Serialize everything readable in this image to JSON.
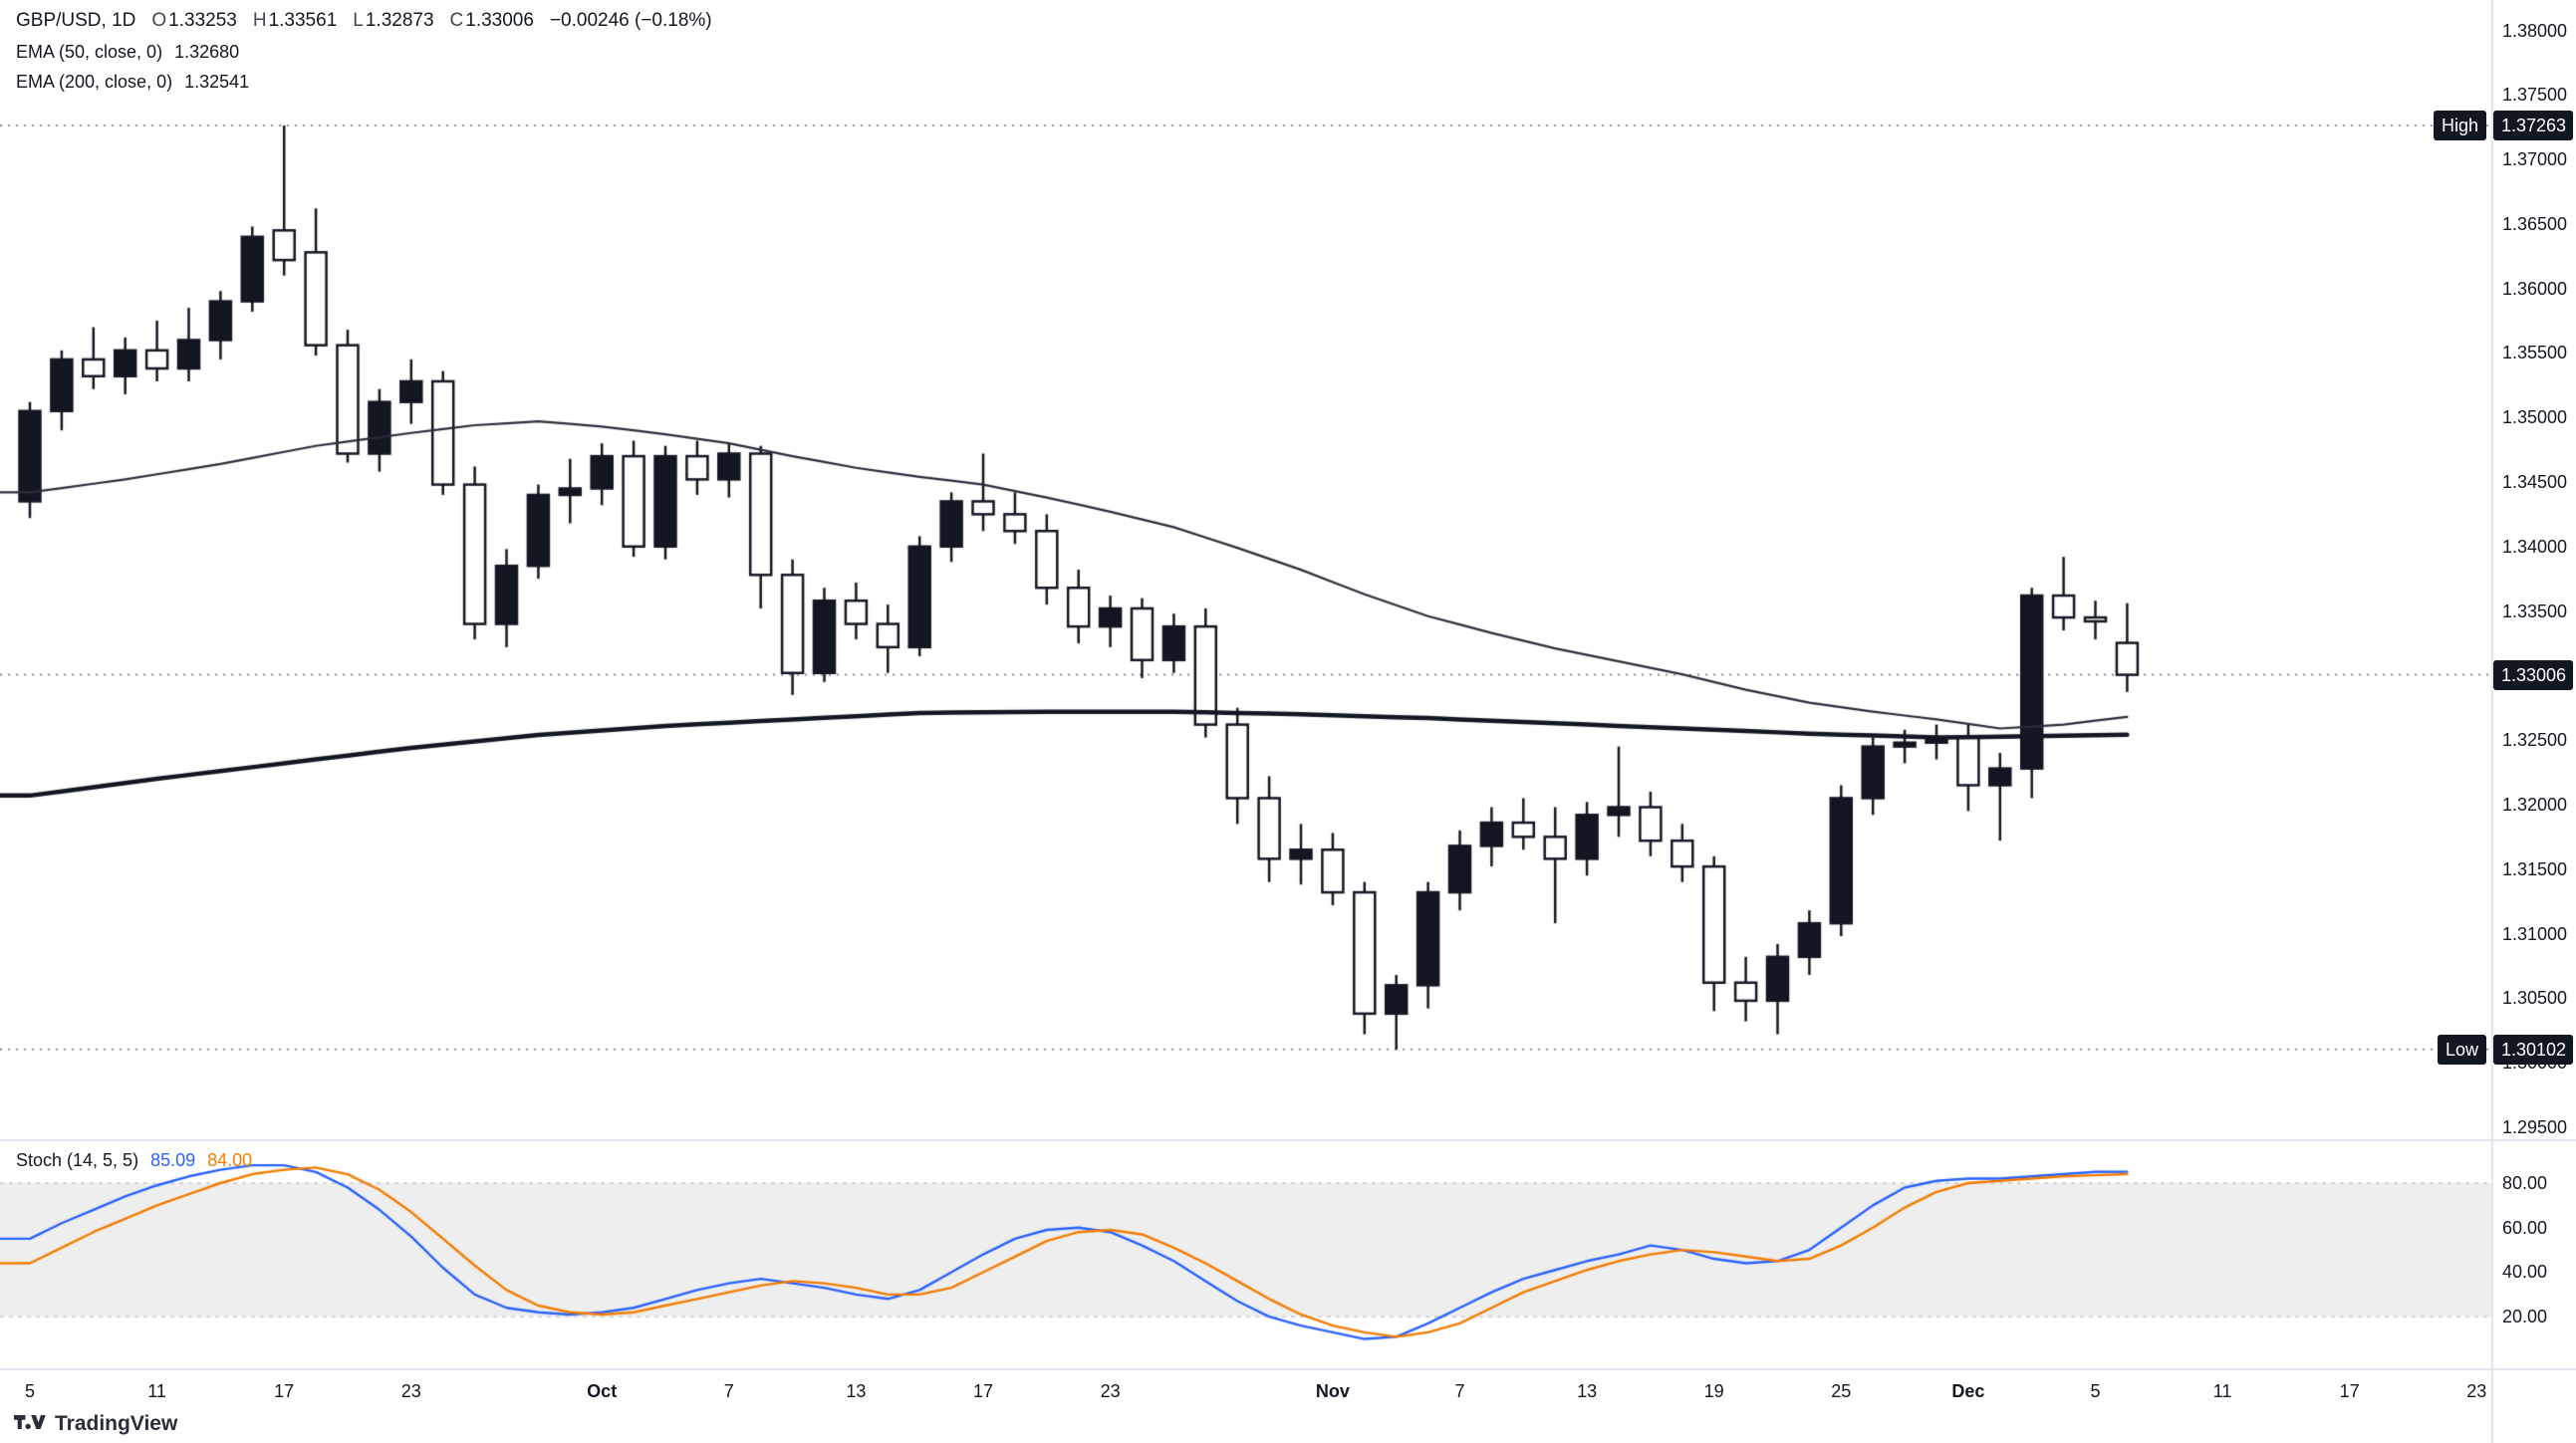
{
  "header": {
    "title": "GBP/USD, 1D",
    "o": {
      "k": "O",
      "v": "1.33253"
    },
    "h": {
      "k": "H",
      "v": "1.33561"
    },
    "l": {
      "k": "L",
      "v": "1.32873"
    },
    "c": {
      "k": "C",
      "v": "1.33006"
    },
    "change": "−0.00246 (−0.18%)",
    "indicators": [
      {
        "label": "EMA (50, close, 0)",
        "value": "1.32680"
      },
      {
        "label": "EMA (200, close, 0)",
        "value": "1.32541"
      }
    ]
  },
  "stoch": {
    "label": "Stoch (14, 5, 5)",
    "k": "85.09",
    "d": "84.00"
  },
  "badges": {
    "high_label": "High",
    "high_value": "1.37263",
    "low_label": "Low",
    "low_value": "1.30102",
    "last_value": "1.33006"
  },
  "watermark": "TradingView",
  "price_axis_labels": [
    "1.38000",
    "1.37500",
    "1.37000",
    "1.36500",
    "1.36000",
    "1.35500",
    "1.35000",
    "1.34500",
    "1.34000",
    "1.33500",
    "1.33000",
    "1.32500",
    "1.32000",
    "1.31500",
    "1.31000",
    "1.30500",
    "1.30000",
    "1.29500"
  ],
  "stoch_axis_labels": [
    "80.00",
    "60.00",
    "40.00",
    "20.00"
  ],
  "time_axis_labels": [
    {
      "i": 0,
      "label": "5"
    },
    {
      "i": 4,
      "label": "11"
    },
    {
      "i": 8,
      "label": "17"
    },
    {
      "i": 12,
      "label": "23"
    },
    {
      "i": 18,
      "label": "Oct",
      "major": true
    },
    {
      "i": 22,
      "label": "7"
    },
    {
      "i": 26,
      "label": "13"
    },
    {
      "i": 30,
      "label": "17"
    },
    {
      "i": 34,
      "label": "23"
    },
    {
      "i": 41,
      "label": "Nov",
      "major": true
    },
    {
      "i": 45,
      "label": "7"
    },
    {
      "i": 49,
      "label": "13"
    },
    {
      "i": 53,
      "label": "19"
    },
    {
      "i": 57,
      "label": "25"
    },
    {
      "i": 61,
      "label": "Dec",
      "major": true
    },
    {
      "i": 65,
      "label": "5"
    },
    {
      "i": 69,
      "label": "11"
    },
    {
      "i": 73,
      "label": "17"
    },
    {
      "i": 77,
      "label": "23"
    }
  ],
  "colors": {
    "up": "#131722",
    "down_fill": "#ffffff",
    "outline": "#131722",
    "ema50": "#2a2e39",
    "ema200": "#131722",
    "stoch_k": "#2962ff",
    "stoch_d": "#f57c00",
    "band_fill": "#eeeeee",
    "band_edge": "#c8cace",
    "badge_bg": "#131722",
    "badge_text": "#ffffff",
    "axis_text": "#131722",
    "separator": "#e0e3eb",
    "dotted": "#8a8e98"
  },
  "chart_data": {
    "type": "candlestick",
    "symbol": "GBP/USD",
    "interval": "1D",
    "price_axis": {
      "min": 1.2925,
      "max": 1.3824,
      "tick_step": 0.005
    },
    "stoch_axis": {
      "min": 0,
      "max": 100,
      "ticks": [
        80,
        60,
        40,
        20
      ]
    },
    "price_lines": {
      "high": 1.37263,
      "low": 1.30102,
      "last": 1.33006
    },
    "candles": [
      [
        "Sep 5",
        1.3435,
        1.3512,
        1.3422,
        1.3505
      ],
      [
        "Sep 8",
        1.3505,
        1.3552,
        1.349,
        1.3545
      ],
      [
        "Sep 9",
        1.3545,
        1.357,
        1.3522,
        1.3532
      ],
      [
        "Sep 10",
        1.3532,
        1.3562,
        1.3518,
        1.3552
      ],
      [
        "Sep 11",
        1.3552,
        1.3575,
        1.3528,
        1.3538
      ],
      [
        "Sep 12",
        1.3538,
        1.3585,
        1.3528,
        1.356
      ],
      [
        "Sep 15",
        1.356,
        1.3598,
        1.3545,
        1.359
      ],
      [
        "Sep 16",
        1.359,
        1.3648,
        1.3582,
        1.364
      ],
      [
        "Sep 17",
        1.3645,
        1.37263,
        1.361,
        1.3622
      ],
      [
        "Sep 18",
        1.3628,
        1.3662,
        1.3548,
        1.3556
      ],
      [
        "Sep 19",
        1.3556,
        1.3568,
        1.3465,
        1.3472
      ],
      [
        "Sep 22",
        1.3472,
        1.3522,
        1.3458,
        1.3512
      ],
      [
        "Sep 23",
        1.3512,
        1.3545,
        1.3495,
        1.3528
      ],
      [
        "Sep 24",
        1.3528,
        1.3536,
        1.344,
        1.3448
      ],
      [
        "Sep 25",
        1.3448,
        1.3462,
        1.3328,
        1.334
      ],
      [
        "Sep 26",
        1.334,
        1.3398,
        1.3322,
        1.3385
      ],
      [
        "Sep 29",
        1.3385,
        1.3448,
        1.3375,
        1.344
      ],
      [
        "Sep 30",
        1.344,
        1.3468,
        1.3418,
        1.3445
      ],
      [
        "Oct 1",
        1.3445,
        1.348,
        1.3432,
        1.347
      ],
      [
        "Oct 2",
        1.347,
        1.3482,
        1.3392,
        1.34
      ],
      [
        "Oct 3",
        1.34,
        1.3478,
        1.339,
        1.347
      ],
      [
        "Oct 6",
        1.347,
        1.3482,
        1.344,
        1.3452
      ],
      [
        "Oct 7",
        1.3452,
        1.348,
        1.3438,
        1.3472
      ],
      [
        "Oct 8",
        1.3472,
        1.3478,
        1.3352,
        1.3378
      ],
      [
        "Oct 9",
        1.3378,
        1.339,
        1.3285,
        1.3302
      ],
      [
        "Oct 10",
        1.3302,
        1.3368,
        1.3295,
        1.3358
      ],
      [
        "Oct 13",
        1.3358,
        1.3372,
        1.3328,
        1.334
      ],
      [
        "Oct 14",
        1.334,
        1.3355,
        1.3302,
        1.3322
      ],
      [
        "Oct 15",
        1.3322,
        1.3408,
        1.3315,
        1.34
      ],
      [
        "Oct 16",
        1.34,
        1.3442,
        1.3388,
        1.3435
      ],
      [
        "Oct 17",
        1.3435,
        1.3472,
        1.3412,
        1.3425
      ],
      [
        "Oct 20",
        1.3425,
        1.3442,
        1.3402,
        1.3412
      ],
      [
        "Oct 21",
        1.3412,
        1.3425,
        1.3355,
        1.3368
      ],
      [
        "Oct 22",
        1.3368,
        1.3382,
        1.3325,
        1.3338
      ],
      [
        "Oct 23",
        1.3338,
        1.3362,
        1.3322,
        1.3352
      ],
      [
        "Oct 24",
        1.3352,
        1.336,
        1.3298,
        1.3312
      ],
      [
        "Oct 27",
        1.3312,
        1.3348,
        1.3302,
        1.3338
      ],
      [
        "Oct 28",
        1.3338,
        1.3352,
        1.3252,
        1.3262
      ],
      [
        "Oct 29",
        1.3262,
        1.3275,
        1.3185,
        1.3205
      ],
      [
        "Oct 30",
        1.3205,
        1.3222,
        1.314,
        1.3158
      ],
      [
        "Oct 31",
        1.3158,
        1.3185,
        1.3138,
        1.3165
      ],
      [
        "Nov 3",
        1.3165,
        1.3178,
        1.3122,
        1.3132
      ],
      [
        "Nov 4",
        1.3132,
        1.314,
        1.3022,
        1.3038
      ],
      [
        "Nov 5",
        1.3038,
        1.3068,
        1.30102,
        1.306
      ],
      [
        "Nov 6",
        1.306,
        1.314,
        1.3042,
        1.3132
      ],
      [
        "Nov 7",
        1.3132,
        1.318,
        1.3118,
        1.3168
      ],
      [
        "Nov 10",
        1.3168,
        1.3198,
        1.3152,
        1.3186
      ],
      [
        "Nov 11",
        1.3186,
        1.3205,
        1.3165,
        1.3175
      ],
      [
        "Nov 12",
        1.3175,
        1.3198,
        1.3108,
        1.3158
      ],
      [
        "Nov 13",
        1.3158,
        1.3202,
        1.3145,
        1.3192
      ],
      [
        "Nov 14",
        1.3192,
        1.3245,
        1.3175,
        1.3198
      ],
      [
        "Nov 17",
        1.3198,
        1.321,
        1.316,
        1.3172
      ],
      [
        "Nov 18",
        1.3172,
        1.3185,
        1.314,
        1.3152
      ],
      [
        "Nov 19",
        1.3152,
        1.316,
        1.304,
        1.3062
      ],
      [
        "Nov 20",
        1.3062,
        1.3082,
        1.3032,
        1.3048
      ],
      [
        "Nov 21",
        1.3048,
        1.3092,
        1.3022,
        1.3082
      ],
      [
        "Nov 24",
        1.3082,
        1.3118,
        1.3068,
        1.3108
      ],
      [
        "Nov 25",
        1.3108,
        1.3215,
        1.3098,
        1.3205
      ],
      [
        "Nov 26",
        1.3205,
        1.3252,
        1.3192,
        1.3245
      ],
      [
        "Nov 27",
        1.3245,
        1.3258,
        1.3232,
        1.3248
      ],
      [
        "Nov 28",
        1.3248,
        1.3262,
        1.3235,
        1.3252
      ],
      [
        "Dec 1",
        1.3252,
        1.3262,
        1.3195,
        1.3215
      ],
      [
        "Dec 2",
        1.3215,
        1.324,
        1.3172,
        1.3228
      ],
      [
        "Dec 3",
        1.3228,
        1.3368,
        1.3205,
        1.3362
      ],
      [
        "Dec 4",
        1.3362,
        1.3392,
        1.3335,
        1.3345
      ],
      [
        "Dec 5",
        1.3345,
        1.3358,
        1.3328,
        1.3342
      ],
      [
        "Dec 8",
        1.33253,
        1.33561,
        1.32873,
        1.33006
      ]
    ],
    "overlays": [
      {
        "name": "EMA 50",
        "last": 1.3268,
        "points": [
          [
            0,
            1.3442
          ],
          [
            3,
            1.3452
          ],
          [
            6,
            1.3464
          ],
          [
            9,
            1.3478
          ],
          [
            12,
            1.3488
          ],
          [
            14,
            1.3494
          ],
          [
            16,
            1.3497
          ],
          [
            18,
            1.3493
          ],
          [
            20,
            1.3487
          ],
          [
            22,
            1.348
          ],
          [
            24,
            1.347
          ],
          [
            26,
            1.3461
          ],
          [
            28,
            1.3454
          ],
          [
            30,
            1.3448
          ],
          [
            32,
            1.3438
          ],
          [
            34,
            1.3427
          ],
          [
            36,
            1.3415
          ],
          [
            38,
            1.3399
          ],
          [
            40,
            1.3382
          ],
          [
            42,
            1.3363
          ],
          [
            44,
            1.3346
          ],
          [
            46,
            1.3333
          ],
          [
            48,
            1.3321
          ],
          [
            50,
            1.3311
          ],
          [
            52,
            1.3301
          ],
          [
            54,
            1.3289
          ],
          [
            56,
            1.3279
          ],
          [
            58,
            1.3272
          ],
          [
            60,
            1.3266
          ],
          [
            62,
            1.3259
          ],
          [
            64,
            1.3262
          ],
          [
            66,
            1.3268
          ]
        ]
      },
      {
        "name": "EMA 200",
        "last": 1.32541,
        "points": [
          [
            0,
            1.3207
          ],
          [
            4,
            1.322
          ],
          [
            8,
            1.3232
          ],
          [
            12,
            1.3244
          ],
          [
            16,
            1.3254
          ],
          [
            20,
            1.3261
          ],
          [
            24,
            1.3266
          ],
          [
            28,
            1.3271
          ],
          [
            32,
            1.3272
          ],
          [
            36,
            1.3272
          ],
          [
            40,
            1.327
          ],
          [
            44,
            1.3267
          ],
          [
            48,
            1.3263
          ],
          [
            52,
            1.3259
          ],
          [
            56,
            1.3255
          ],
          [
            60,
            1.3252
          ],
          [
            63,
            1.3253
          ],
          [
            66,
            1.32541
          ]
        ]
      }
    ],
    "indicator": {
      "name": "Stoch (14, 5, 5)",
      "overbought": 80,
      "oversold": 20,
      "k_last": 85.09,
      "d_last": 84.0,
      "k_values": [
        55,
        62,
        68,
        74,
        79,
        83,
        86,
        88,
        88,
        85,
        78,
        68,
        56,
        42,
        30,
        24,
        22,
        21,
        22,
        24,
        28,
        32,
        35,
        37,
        35,
        33,
        30,
        28,
        32,
        40,
        48,
        55,
        59,
        60,
        58,
        52,
        45,
        36,
        27,
        20,
        16,
        13,
        10,
        11,
        17,
        24,
        31,
        37,
        41,
        45,
        48,
        52,
        50,
        46,
        44,
        45,
        50,
        60,
        70,
        78,
        81,
        82,
        82,
        83,
        84,
        85,
        85.09
      ],
      "d_values": [
        44,
        51,
        58,
        64,
        70,
        75,
        80,
        84,
        86,
        87,
        84,
        77,
        67,
        55,
        43,
        32,
        25,
        22,
        21,
        22,
        25,
        28,
        31,
        34,
        36,
        35,
        33,
        30,
        30,
        33,
        40,
        47,
        54,
        58,
        59,
        57,
        51,
        44,
        36,
        28,
        21,
        16,
        13,
        11,
        13,
        17,
        24,
        31,
        36,
        41,
        45,
        48,
        50,
        49,
        47,
        45,
        46,
        52,
        60,
        69,
        76,
        80,
        81,
        82,
        83,
        83.5,
        84
      ]
    }
  }
}
